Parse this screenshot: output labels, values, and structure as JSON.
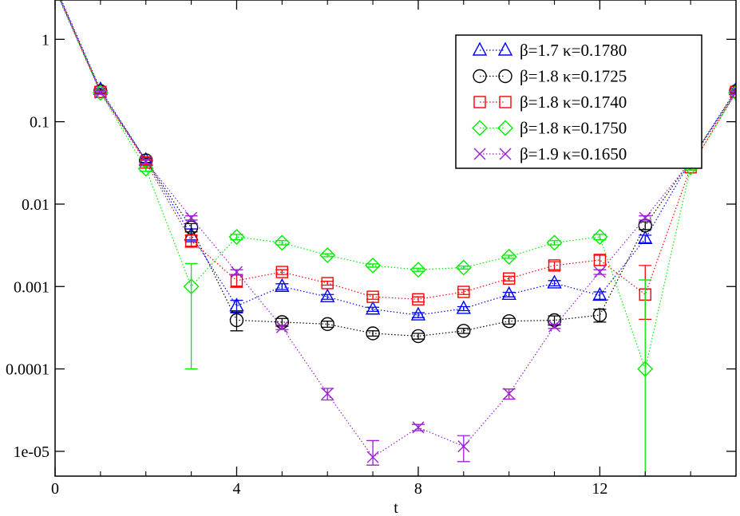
{
  "chart_data": {
    "type": "scatter",
    "title": "",
    "xlabel": "t",
    "ylabel": "",
    "xlim": [
      0,
      15
    ],
    "ylim": [
      5e-06,
      3
    ],
    "yscale": "log",
    "grid": false,
    "legend_position": "top-right",
    "x_ticks": [
      0,
      4,
      8,
      12
    ],
    "y_ticks": [
      {
        "value": 1,
        "label": "1"
      },
      {
        "value": 0.1,
        "label": "0.1"
      },
      {
        "value": 0.01,
        "label": "0.01"
      },
      {
        "value": 0.001,
        "label": "0.001"
      },
      {
        "value": 0.0001,
        "label": "0.0001"
      },
      {
        "value": 1e-05,
        "label": "1e-05"
      }
    ],
    "series": [
      {
        "name": "β=1.7 κ=0.1780",
        "marker": "triangle",
        "color": "#0000ff",
        "points": [
          {
            "x": 0,
            "y": 4.5
          },
          {
            "x": 1,
            "y": 0.245,
            "lo": 0.235,
            "hi": 0.255
          },
          {
            "x": 2,
            "y": 0.034,
            "lo": 0.032,
            "hi": 0.036
          },
          {
            "x": 3,
            "y": 0.0042,
            "lo": 0.0035,
            "hi": 0.005
          },
          {
            "x": 4,
            "y": 0.00058,
            "lo": 0.00048,
            "hi": 0.00068
          },
          {
            "x": 5,
            "y": 0.001,
            "lo": 0.00092,
            "hi": 0.00108
          },
          {
            "x": 6,
            "y": 0.00075,
            "lo": 0.0007,
            "hi": 0.0008
          },
          {
            "x": 7,
            "y": 0.00053,
            "lo": 0.0005,
            "hi": 0.00056
          },
          {
            "x": 8,
            "y": 0.00045,
            "lo": 0.00042,
            "hi": 0.00048
          },
          {
            "x": 9,
            "y": 0.00054,
            "lo": 0.00051,
            "hi": 0.00057
          },
          {
            "x": 10,
            "y": 0.0008,
            "lo": 0.00075,
            "hi": 0.00085
          },
          {
            "x": 11,
            "y": 0.0011,
            "lo": 0.00102,
            "hi": 0.00118
          },
          {
            "x": 12,
            "y": 0.00078,
            "lo": 0.0007,
            "hi": 0.00086
          },
          {
            "x": 13,
            "y": 0.0038,
            "lo": 0.0034,
            "hi": 0.0042
          },
          {
            "x": 14,
            "y": 0.034,
            "lo": 0.032,
            "hi": 0.036
          },
          {
            "x": 15,
            "y": 0.245,
            "lo": 0.235,
            "hi": 0.255
          }
        ]
      },
      {
        "name": "β=1.8 κ=0.1725",
        "marker": "circle",
        "color": "#000000",
        "points": [
          {
            "x": 0,
            "y": 4.3
          },
          {
            "x": 1,
            "y": 0.235,
            "lo": 0.225,
            "hi": 0.245
          },
          {
            "x": 2,
            "y": 0.034,
            "lo": 0.032,
            "hi": 0.036
          },
          {
            "x": 3,
            "y": 0.0052,
            "lo": 0.0046,
            "hi": 0.0058
          },
          {
            "x": 4,
            "y": 0.00039,
            "lo": 0.00029,
            "hi": 0.00049
          },
          {
            "x": 5,
            "y": 0.00037,
            "lo": 0.00033,
            "hi": 0.00041
          },
          {
            "x": 6,
            "y": 0.00035,
            "lo": 0.00032,
            "hi": 0.00038
          },
          {
            "x": 7,
            "y": 0.00027,
            "lo": 0.00025,
            "hi": 0.00029
          },
          {
            "x": 8,
            "y": 0.00025,
            "lo": 0.00023,
            "hi": 0.00027
          },
          {
            "x": 9,
            "y": 0.00029,
            "lo": 0.00027,
            "hi": 0.00031
          },
          {
            "x": 10,
            "y": 0.00038,
            "lo": 0.00035,
            "hi": 0.00041
          },
          {
            "x": 11,
            "y": 0.00039,
            "lo": 0.00034,
            "hi": 0.00044
          },
          {
            "x": 12,
            "y": 0.00045,
            "lo": 0.00037,
            "hi": 0.00053
          },
          {
            "x": 13,
            "y": 0.0055,
            "lo": 0.0049,
            "hi": 0.0061
          },
          {
            "x": 14,
            "y": 0.034,
            "lo": 0.032,
            "hi": 0.036
          },
          {
            "x": 15,
            "y": 0.235,
            "lo": 0.225,
            "hi": 0.245
          }
        ]
      },
      {
        "name": "β=1.8 κ=0.1740",
        "marker": "square",
        "color": "#ff0000",
        "points": [
          {
            "x": 0,
            "y": 4.2
          },
          {
            "x": 1,
            "y": 0.23,
            "lo": 0.22,
            "hi": 0.24
          },
          {
            "x": 2,
            "y": 0.032,
            "lo": 0.03,
            "hi": 0.034
          },
          {
            "x": 3,
            "y": 0.0036,
            "lo": 0.003,
            "hi": 0.0042
          },
          {
            "x": 4,
            "y": 0.00118,
            "lo": 0.00098,
            "hi": 0.00138
          },
          {
            "x": 5,
            "y": 0.0015,
            "lo": 0.0014,
            "hi": 0.0016
          },
          {
            "x": 6,
            "y": 0.0011,
            "lo": 0.00104,
            "hi": 0.00116
          },
          {
            "x": 7,
            "y": 0.00075,
            "lo": 0.0007,
            "hi": 0.0008
          },
          {
            "x": 8,
            "y": 0.0007,
            "lo": 0.00065,
            "hi": 0.00075
          },
          {
            "x": 9,
            "y": 0.00086,
            "lo": 0.0008,
            "hi": 0.00092
          },
          {
            "x": 10,
            "y": 0.00125,
            "lo": 0.00117,
            "hi": 0.00133
          },
          {
            "x": 11,
            "y": 0.0018,
            "lo": 0.0016,
            "hi": 0.002
          },
          {
            "x": 12,
            "y": 0.0021,
            "lo": 0.0018,
            "hi": 0.0024
          },
          {
            "x": 13,
            "y": 0.0008,
            "lo": 0.0004,
            "hi": 0.0018
          },
          {
            "x": 14,
            "y": 0.028,
            "lo": 0.026,
            "hi": 0.03
          },
          {
            "x": 15,
            "y": 0.23,
            "lo": 0.22,
            "hi": 0.24
          }
        ]
      },
      {
        "name": "β=1.8 κ=0.1750",
        "marker": "diamond",
        "color": "#00ee00",
        "points": [
          {
            "x": 0,
            "y": 4.0
          },
          {
            "x": 1,
            "y": 0.225,
            "lo": 0.215,
            "hi": 0.235
          },
          {
            "x": 2,
            "y": 0.027,
            "lo": 0.025,
            "hi": 0.029
          },
          {
            "x": 3,
            "y": 0.001,
            "lo": 0.0001,
            "hi": 0.0019
          },
          {
            "x": 4,
            "y": 0.004,
            "lo": 0.0037,
            "hi": 0.0043
          },
          {
            "x": 5,
            "y": 0.0034,
            "lo": 0.0032,
            "hi": 0.0036
          },
          {
            "x": 6,
            "y": 0.0024,
            "lo": 0.0023,
            "hi": 0.0025
          },
          {
            "x": 7,
            "y": 0.0018,
            "lo": 0.00172,
            "hi": 0.00188
          },
          {
            "x": 8,
            "y": 0.0016,
            "lo": 0.00153,
            "hi": 0.00167
          },
          {
            "x": 9,
            "y": 0.0017,
            "lo": 0.00163,
            "hi": 0.00177
          },
          {
            "x": 10,
            "y": 0.0023,
            "lo": 0.0022,
            "hi": 0.0024
          },
          {
            "x": 11,
            "y": 0.0034,
            "lo": 0.0032,
            "hi": 0.0036
          },
          {
            "x": 12,
            "y": 0.004,
            "lo": 0.0037,
            "hi": 0.0043
          },
          {
            "x": 13,
            "y": 0.0001,
            "lo": 5e-06,
            "hi": 0.0012
          },
          {
            "x": 14,
            "y": 0.028,
            "lo": 0.026,
            "hi": 0.03
          },
          {
            "x": 15,
            "y": 0.225,
            "lo": 0.215,
            "hi": 0.235
          }
        ]
      },
      {
        "name": "β=1.9 κ=0.1650",
        "marker": "x",
        "color": "#9a1fd6",
        "points": [
          {
            "x": 0,
            "y": 4.1
          },
          {
            "x": 1,
            "y": 0.225,
            "lo": 0.215,
            "hi": 0.235
          },
          {
            "x": 2,
            "y": 0.033,
            "lo": 0.031,
            "hi": 0.035
          },
          {
            "x": 3,
            "y": 0.0068,
            "lo": 0.0064,
            "hi": 0.0072
          },
          {
            "x": 4,
            "y": 0.0015,
            "lo": 0.0014,
            "hi": 0.0016
          },
          {
            "x": 5,
            "y": 0.00032,
            "lo": 0.0003,
            "hi": 0.00034
          },
          {
            "x": 6,
            "y": 5e-05,
            "lo": 4.2e-05,
            "hi": 5.8e-05
          },
          {
            "x": 7,
            "y": 8.5e-06,
            "lo": 6.8e-06,
            "hi": 1.35e-05
          },
          {
            "x": 8,
            "y": 1.95e-05,
            "lo": 1.78e-05,
            "hi": 2.12e-05
          },
          {
            "x": 9,
            "y": 1.15e-05,
            "lo": 7.5e-06,
            "hi": 1.55e-05
          },
          {
            "x": 10,
            "y": 5e-05,
            "lo": 4.3e-05,
            "hi": 5.7e-05
          },
          {
            "x": 11,
            "y": 0.00033,
            "lo": 0.00031,
            "hi": 0.00035
          },
          {
            "x": 12,
            "y": 0.0015,
            "lo": 0.0014,
            "hi": 0.0016
          },
          {
            "x": 13,
            "y": 0.0068,
            "lo": 0.0064,
            "hi": 0.0072
          },
          {
            "x": 14,
            "y": 0.033,
            "lo": 0.031,
            "hi": 0.035
          },
          {
            "x": 15,
            "y": 0.225,
            "lo": 0.215,
            "hi": 0.235
          }
        ]
      }
    ]
  }
}
